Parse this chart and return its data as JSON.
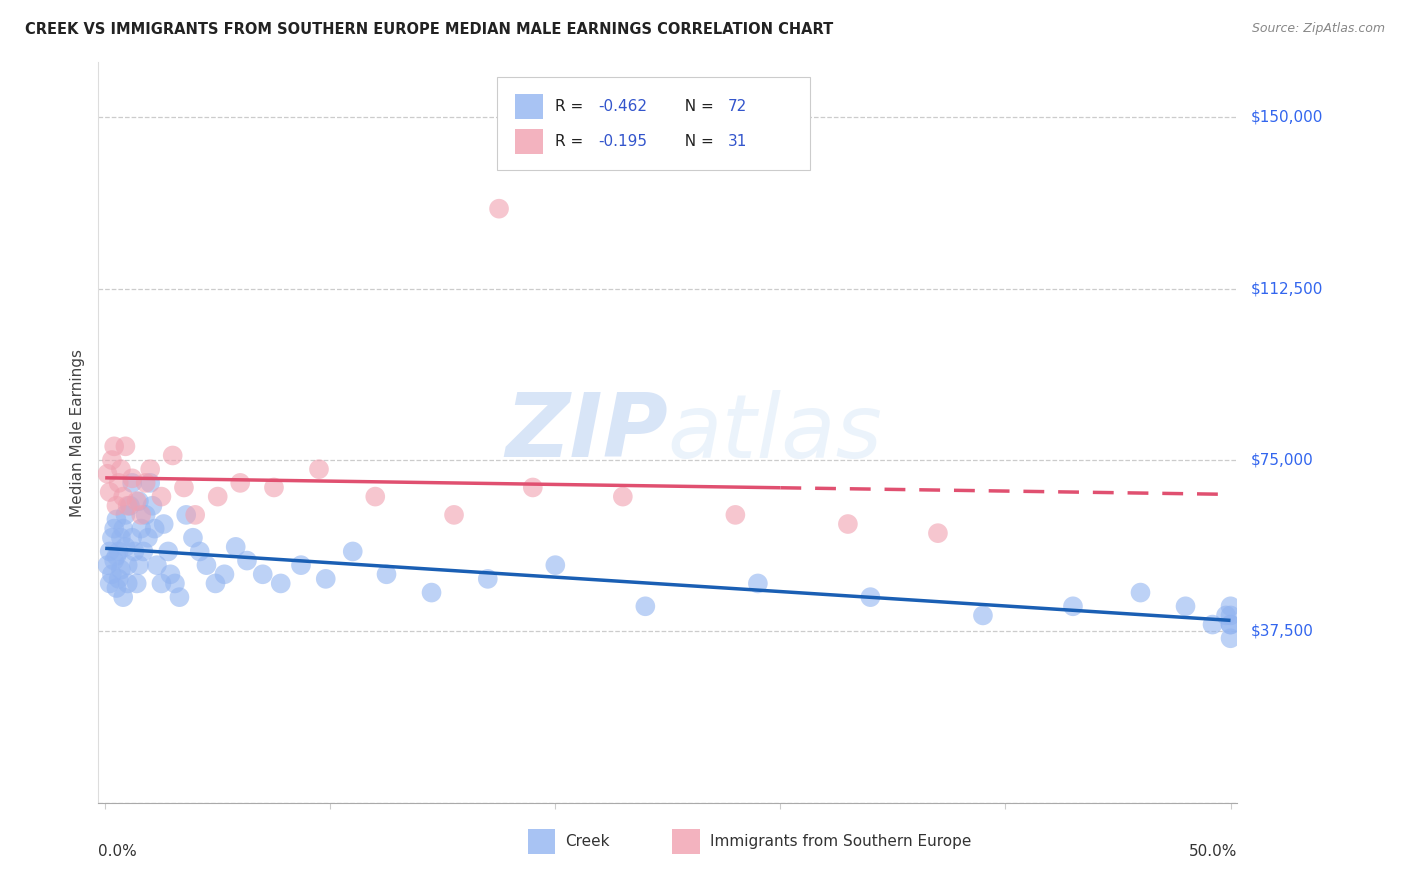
{
  "title": "CREEK VS IMMIGRANTS FROM SOUTHERN EUROPE MEDIAN MALE EARNINGS CORRELATION CHART",
  "source": "Source: ZipAtlas.com",
  "ylabel": "Median Male Earnings",
  "yticks": [
    0,
    37500,
    75000,
    112500,
    150000
  ],
  "ytick_labels": [
    "",
    "$37,500",
    "$75,000",
    "$112,500",
    "$150,000"
  ],
  "xlim": [
    0.0,
    0.5
  ],
  "ylim": [
    18000,
    162000
  ],
  "legend_r_creek": "-0.462",
  "legend_n_creek": "72",
  "legend_r_imm": "-0.195",
  "legend_n_imm": "31",
  "creek_color": "#92b4f0",
  "imm_color": "#f0a0b0",
  "creek_line_color": "#1a5fb4",
  "imm_line_color": "#e05070",
  "background_color": "#ffffff",
  "watermark_zip": "ZIP",
  "watermark_atlas": "atlas",
  "creek_x": [
    0.001,
    0.002,
    0.002,
    0.003,
    0.003,
    0.004,
    0.004,
    0.005,
    0.005,
    0.005,
    0.006,
    0.006,
    0.007,
    0.007,
    0.008,
    0.008,
    0.009,
    0.009,
    0.01,
    0.01,
    0.011,
    0.012,
    0.012,
    0.013,
    0.014,
    0.015,
    0.015,
    0.016,
    0.017,
    0.018,
    0.019,
    0.02,
    0.021,
    0.022,
    0.023,
    0.025,
    0.026,
    0.028,
    0.029,
    0.031,
    0.033,
    0.036,
    0.039,
    0.042,
    0.045,
    0.049,
    0.053,
    0.058,
    0.063,
    0.07,
    0.078,
    0.087,
    0.098,
    0.11,
    0.125,
    0.145,
    0.17,
    0.2,
    0.24,
    0.29,
    0.34,
    0.39,
    0.43,
    0.46,
    0.48,
    0.492,
    0.498,
    0.5,
    0.5,
    0.5,
    0.5,
    0.5
  ],
  "creek_y": [
    52000,
    55000,
    48000,
    58000,
    50000,
    60000,
    53000,
    47000,
    54000,
    62000,
    55000,
    49000,
    51000,
    58000,
    60000,
    45000,
    56000,
    63000,
    52000,
    48000,
    65000,
    58000,
    70000,
    55000,
    48000,
    66000,
    52000,
    60000,
    55000,
    63000,
    58000,
    70000,
    65000,
    60000,
    52000,
    48000,
    61000,
    55000,
    50000,
    48000,
    45000,
    63000,
    58000,
    55000,
    52000,
    48000,
    50000,
    56000,
    53000,
    50000,
    48000,
    52000,
    49000,
    55000,
    50000,
    46000,
    49000,
    52000,
    43000,
    48000,
    45000,
    41000,
    43000,
    46000,
    43000,
    39000,
    41000,
    39000,
    41000,
    43000,
    39000,
    36000
  ],
  "imm_x": [
    0.001,
    0.002,
    0.003,
    0.004,
    0.005,
    0.006,
    0.007,
    0.008,
    0.009,
    0.01,
    0.012,
    0.014,
    0.016,
    0.018,
    0.02,
    0.025,
    0.03,
    0.035,
    0.04,
    0.05,
    0.06,
    0.075,
    0.095,
    0.12,
    0.155,
    0.19,
    0.23,
    0.28,
    0.33,
    0.37,
    0.175
  ],
  "imm_y": [
    72000,
    68000,
    75000,
    78000,
    65000,
    70000,
    73000,
    67000,
    78000,
    65000,
    71000,
    66000,
    63000,
    70000,
    73000,
    67000,
    76000,
    69000,
    63000,
    67000,
    70000,
    69000,
    73000,
    67000,
    63000,
    69000,
    67000,
    63000,
    61000,
    59000,
    130000
  ]
}
